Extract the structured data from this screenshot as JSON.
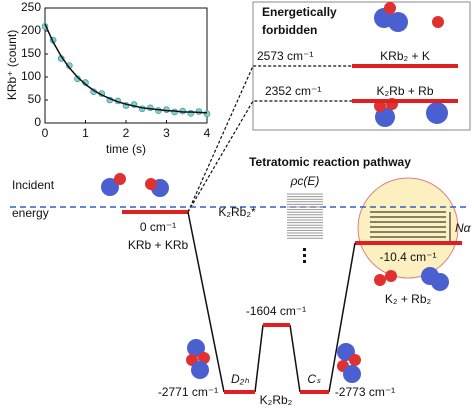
{
  "inset": {
    "type": "scatter",
    "y_label": "KRb⁺ (count)",
    "x_label": "time (s)",
    "xlim": [
      0,
      4
    ],
    "xticks": [
      0,
      1,
      2,
      3,
      4
    ],
    "ylim": [
      0,
      250
    ],
    "yticks": [
      0,
      50,
      100,
      150,
      200,
      250
    ],
    "color": "#7fd0d4",
    "fit_color": "#111111",
    "x": [
      0,
      0.2,
      0.4,
      0.6,
      0.8,
      1.0,
      1.2,
      1.4,
      1.6,
      1.8,
      2.0,
      2.2,
      2.4,
      2.6,
      2.8,
      3.0,
      3.2,
      3.4,
      3.6,
      3.8,
      4.0
    ],
    "y": [
      210,
      180,
      140,
      125,
      96,
      88,
      68,
      64,
      50,
      48,
      38,
      40,
      31,
      33,
      27,
      29,
      24,
      26,
      21,
      25,
      20
    ],
    "fit_y": [
      215,
      176,
      145,
      120,
      100,
      84,
      71,
      61,
      53,
      46,
      41,
      37,
      33,
      31,
      29,
      27,
      26,
      24,
      24,
      23,
      22
    ]
  },
  "forbidden": {
    "title_line1": "Energetically",
    "title_line2": "forbidden",
    "levels": [
      {
        "energy": "2573 cm⁻¹",
        "products": "KRb₂ + K"
      },
      {
        "energy": "2352 cm⁻¹",
        "products": "K₂Rb + Rb"
      }
    ]
  },
  "pathway": {
    "title": "Tetratomic reaction pathway",
    "incident_line1": "Incident",
    "incident_line2": "energy",
    "entrance": {
      "energy": "0 cm⁻¹",
      "label": "KRb + KRb"
    },
    "complex": "K₂Rb₂*",
    "density": "ρc(E)",
    "exit": {
      "energy": "-10.4 cm⁻¹",
      "label": "K₂ + Rb₂",
      "n_label": "Nα"
    },
    "d2h": {
      "energy": "-2771 cm⁻¹",
      "label": "D₂ₕ"
    },
    "ts": {
      "energy": "-1604 cm⁻¹"
    },
    "cs": {
      "energy": "-2773 cm⁻¹",
      "label": "Cₛ"
    },
    "bottom_label": "K₂Rb₂"
  }
}
